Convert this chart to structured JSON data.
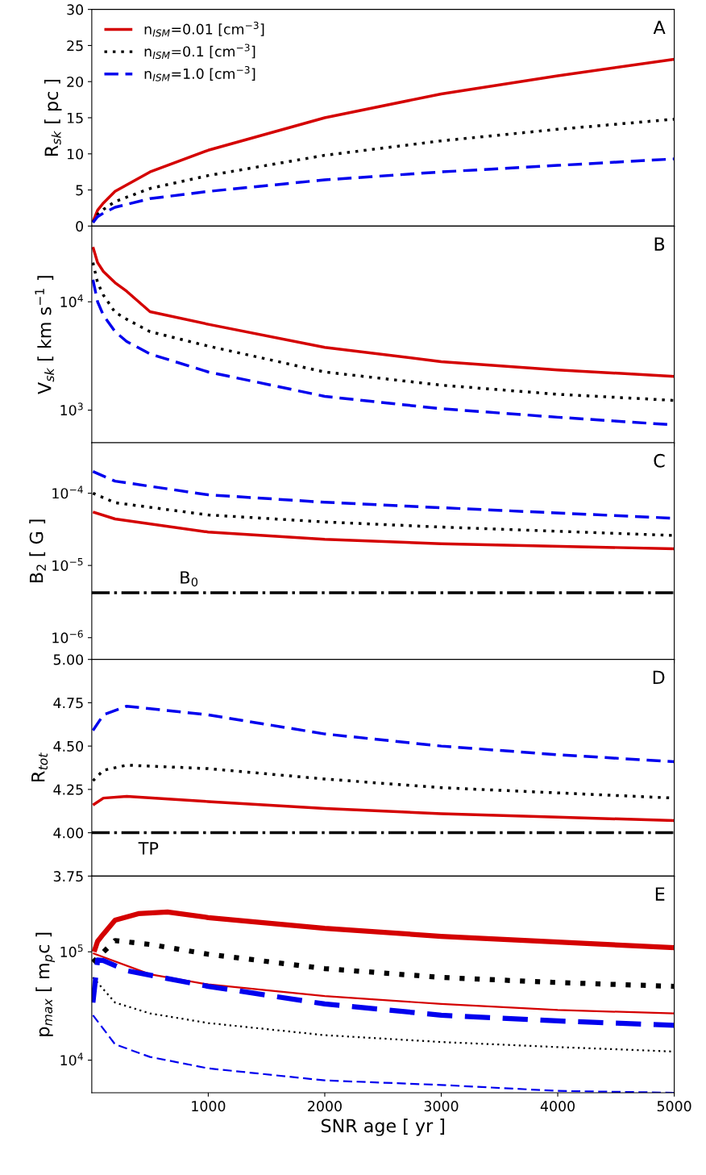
{
  "chart_data": [
    {
      "type": "line",
      "ylabel": "R$_{sk}$ [ pc ]",
      "annotations": [
        "A"
      ],
      "xlim": [
        0,
        5000
      ],
      "xticks": [
        1000,
        2000,
        3000,
        4000,
        5000
      ],
      "ylim": [
        0,
        30
      ],
      "yticks": [
        0,
        5,
        10,
        15,
        20,
        25,
        30
      ],
      "tick_labels": "y",
      "legend": "top left",
      "grid": false,
      "series": [
        {
          "name": "n$_{ISM}$=0.01 [cm$^{−3}$]",
          "color": "#d40000",
          "line_style": "solid",
          "x": [
            10,
            50,
            100,
            200,
            500,
            1000,
            2000,
            3000,
            4000,
            5000
          ],
          "values": [
            0.6,
            2.2,
            3.2,
            4.8,
            7.5,
            10.5,
            15,
            18.3,
            20.8,
            23.1
          ]
        },
        {
          "name": "n$_{ISM}$=0.1 [cm$^{−3}$]",
          "color": "#000000",
          "line_style": "dotted",
          "x": [
            10,
            50,
            100,
            200,
            500,
            1000,
            2000,
            3000,
            4000,
            5000
          ],
          "values": [
            0.5,
            1.6,
            2.3,
            3.4,
            5.2,
            7,
            9.8,
            11.8,
            13.4,
            14.8
          ]
        },
        {
          "name": "n$_{ISM}$=1.0 [cm$^{−3}$]",
          "color": "#0000ee",
          "line_style": "dashed",
          "x": [
            10,
            50,
            100,
            200,
            500,
            1000,
            2000,
            3000,
            4000,
            5000
          ],
          "values": [
            0.5,
            1.3,
            1.8,
            2.6,
            3.8,
            4.8,
            6.4,
            7.5,
            8.4,
            9.3
          ]
        }
      ]
    },
    {
      "type": "line",
      "ylabel": "V$_{sk}$ [ km s$^{−1}$ ]",
      "annotations": [
        "B"
      ],
      "xlim": [
        0,
        5000
      ],
      "xticks": [
        1000,
        2000,
        3000,
        4000,
        5000
      ],
      "log": "y",
      "ylim": [
        500,
        50000
      ],
      "yticks": [
        {
          "value": 1000,
          "label": "10$^{3}$"
        },
        {
          "value": 10000,
          "label": "10$^{4}$"
        }
      ],
      "tick_labels": "y",
      "grid": false,
      "series": [
        {
          "color": "#d40000",
          "line_style": "solid",
          "x": [
            10,
            50,
            100,
            200,
            300,
            500,
            1000,
            2000,
            3000,
            4000,
            5000
          ],
          "values": [
            32000,
            23000,
            19000,
            15000,
            12500,
            8100,
            6200,
            3800,
            2800,
            2350,
            2050
          ]
        },
        {
          "color": "#000000",
          "line_style": "dotted",
          "x": [
            10,
            50,
            100,
            200,
            300,
            500,
            1000,
            2000,
            3000,
            4000,
            5000
          ],
          "values": [
            23000,
            15000,
            11500,
            8000,
            6900,
            5300,
            3900,
            2250,
            1700,
            1400,
            1230
          ]
        },
        {
          "color": "#0000ee",
          "line_style": "dashed",
          "x": [
            10,
            50,
            100,
            200,
            300,
            500,
            1000,
            2000,
            3000,
            4000,
            5000
          ],
          "values": [
            16000,
            10000,
            7500,
            5300,
            4300,
            3300,
            2250,
            1340,
            1030,
            860,
            730
          ]
        }
      ]
    },
    {
      "type": "line",
      "ylabel": "B$_{2}$ [ G ]",
      "annotations": [
        "C"
      ],
      "xlim": [
        0,
        5000
      ],
      "xticks": [
        1000,
        2000,
        3000,
        4000,
        5000
      ],
      "log": "y",
      "ylim": [
        5e-07,
        0.0005
      ],
      "yticks": [
        {
          "value": 1e-06,
          "label": "10$^{−6}$"
        },
        {
          "value": 1e-05,
          "label": "10$^{−5}$"
        },
        {
          "value": 0.0001,
          "label": "10$^{−4}$"
        }
      ],
      "tick_labels": "y",
      "grid": false,
      "ref_lines": [
        {
          "axis": "y",
          "value": 4.2e-06,
          "label": "B$_{0}$",
          "color": "#000000",
          "line_style": "dashdot"
        }
      ],
      "series": [
        {
          "color": "#d40000",
          "line_style": "solid",
          "x": [
            10,
            200,
            1000,
            2000,
            3000,
            5000
          ],
          "values": [
            5.5e-05,
            4.4e-05,
            2.9e-05,
            2.3e-05,
            2e-05,
            1.7e-05
          ]
        },
        {
          "color": "#000000",
          "line_style": "dotted",
          "x": [
            10,
            200,
            1000,
            2000,
            3000,
            5000
          ],
          "values": [
            0.0001,
            7.4e-05,
            5e-05,
            4e-05,
            3.4e-05,
            2.6e-05
          ]
        },
        {
          "color": "#0000ee",
          "line_style": "dashed",
          "x": [
            10,
            200,
            1000,
            2000,
            3000,
            5000
          ],
          "values": [
            0.0002,
            0.000147,
            9.5e-05,
            7.5e-05,
            6.3e-05,
            4.5e-05
          ]
        }
      ]
    },
    {
      "type": "line",
      "ylabel": "R$_{tot}$",
      "annotations": [
        "D"
      ],
      "xlim": [
        0,
        5000
      ],
      "xticks": [
        1000,
        2000,
        3000,
        4000,
        5000
      ],
      "ylim": [
        3.75,
        5.0
      ],
      "yticks": [
        {
          "value": 3.75,
          "label": "3.75"
        },
        {
          "value": 4.0,
          "label": "4.00"
        },
        {
          "value": 4.25,
          "label": "4.25"
        },
        {
          "value": 4.5,
          "label": "4.50"
        },
        {
          "value": 4.75,
          "label": "4.75"
        },
        {
          "value": 5.0,
          "label": "5.00"
        }
      ],
      "tick_labels": "y",
      "grid": false,
      "ref_lines": [
        {
          "axis": "y",
          "value": 4.0,
          "label": "TP",
          "color": "#000000",
          "line_style": "dashdot"
        }
      ],
      "series": [
        {
          "color": "#d40000",
          "line_style": "solid",
          "x": [
            10,
            100,
            300,
            1000,
            2000,
            3000,
            4000,
            5000
          ],
          "values": [
            4.16,
            4.2,
            4.21,
            4.18,
            4.14,
            4.11,
            4.09,
            4.07
          ]
        },
        {
          "color": "#000000",
          "line_style": "dotted",
          "x": [
            10,
            100,
            300,
            1000,
            2000,
            3000,
            4000,
            5000
          ],
          "values": [
            4.3,
            4.36,
            4.39,
            4.37,
            4.31,
            4.26,
            4.23,
            4.2
          ]
        },
        {
          "color": "#0000ee",
          "line_style": "dashed",
          "x": [
            10,
            100,
            300,
            1000,
            2000,
            3000,
            4000,
            5000
          ],
          "values": [
            4.59,
            4.68,
            4.73,
            4.68,
            4.57,
            4.5,
            4.45,
            4.41
          ]
        }
      ]
    },
    {
      "type": "line",
      "ylabel": "p$_{max}$ [ m$_{p}$c ]",
      "xlabel": "SNR age [ yr ]",
      "annotations": [
        "E"
      ],
      "xlim": [
        0,
        5000
      ],
      "xticks": [
        1000,
        2000,
        3000,
        4000,
        5000
      ],
      "log": "y",
      "ylim": [
        5000,
        500000
      ],
      "yticks": [
        {
          "value": 10000,
          "label": "10$^{4}$"
        },
        {
          "value": 100000,
          "label": "10$^{5}$"
        }
      ],
      "grid": false,
      "series": [
        {
          "color": "#d40000",
          "line_style": "solid",
          "x": [
            20,
            50,
            100,
            200,
            400,
            650,
            1000,
            2000,
            3000,
            4000,
            5000
          ],
          "values": [
            100000,
            125000,
            146000,
            196000,
            225000,
            233000,
            207000,
            165000,
            139000,
            123000,
            109000
          ]
        },
        {
          "color": "#d40000",
          "line_style": "solid",
          "x": [
            10,
            500,
            1000,
            2000,
            3000,
            4000,
            5000
          ],
          "values": [
            97000,
            62000,
            50000,
            39000,
            33000,
            29000,
            27000
          ]
        },
        {
          "color": "#000000",
          "line_style": "dotted",
          "x": [
            10,
            200,
            500,
            1000,
            2000,
            3000,
            4000,
            5000
          ],
          "values": [
            80000,
            127000,
            117000,
            95000,
            70000,
            58000,
            52000,
            48000
          ]
        },
        {
          "color": "#000000",
          "line_style": "dotted",
          "x": [
            10,
            200,
            500,
            1000,
            2000,
            3000,
            4000,
            5000
          ],
          "values": [
            58000,
            34000,
            27000,
            22000,
            17000,
            14700,
            13200,
            12000
          ]
        },
        {
          "color": "#0000ee",
          "line_style": "dashed",
          "x": [
            10,
            50,
            100,
            300,
            600,
            1000,
            2000,
            3000,
            4000,
            5000
          ],
          "values": [
            34000,
            84000,
            83000,
            67000,
            58000,
            48000,
            33000,
            26000,
            23000,
            21000
          ]
        },
        {
          "color": "#0000ee",
          "line_style": "dashed",
          "x": [
            10,
            200,
            500,
            1000,
            2000,
            3000,
            4000,
            5000
          ],
          "values": [
            26000,
            14000,
            10700,
            8400,
            6500,
            5900,
            5200,
            5000
          ]
        }
      ]
    }
  ]
}
